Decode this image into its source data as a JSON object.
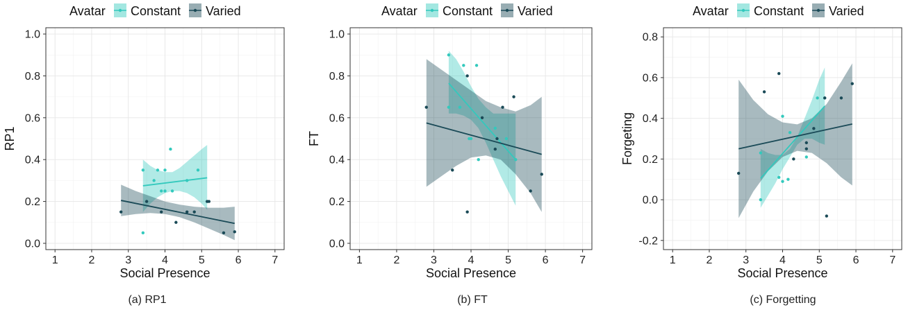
{
  "colors": {
    "constant": "#33c9bd",
    "varied": "#1a4a57"
  },
  "chart_data": [
    {
      "type": "scatter",
      "caption": "(a) RP1",
      "legend_title": "Avatar",
      "xlabel": "Social Presence",
      "ylabel": "RP1",
      "xlim": [
        0.75,
        7.25
      ],
      "ylim": [
        -0.03,
        1.03
      ],
      "xticks": [
        1,
        2,
        3,
        4,
        5,
        6,
        7
      ],
      "yticks": [
        0.0,
        0.2,
        0.4,
        0.6,
        0.8,
        1.0
      ],
      "ytick_labels": [
        "0.0",
        "0.2",
        "0.4",
        "0.6",
        "0.8",
        "1.0"
      ],
      "grid": true,
      "legend_position": "top",
      "series": [
        {
          "name": "Constant",
          "color": "#33c9bd",
          "points": [
            [
              3.4,
              0.35
            ],
            [
              3.4,
              0.05
            ],
            [
              3.7,
              0.3
            ],
            [
              3.8,
              0.35
            ],
            [
              3.9,
              0.25
            ],
            [
              4.0,
              0.25
            ],
            [
              4.0,
              0.35
            ],
            [
              4.15,
              0.45
            ],
            [
              4.2,
              0.25
            ],
            [
              4.6,
              0.3
            ],
            [
              4.9,
              0.35
            ],
            [
              5.15,
              0.2
            ]
          ],
          "fit": {
            "x": [
              3.4,
              5.15
            ],
            "y": [
              0.275,
              0.313
            ]
          },
          "band": {
            "x": [
              3.4,
              3.6,
              3.8,
              4.0,
              4.2,
              4.4,
              4.6,
              4.8,
              5.0,
              5.15
            ],
            "lower": [
              0.15,
              0.19,
              0.22,
              0.24,
              0.25,
              0.25,
              0.24,
              0.22,
              0.19,
              0.16
            ],
            "upper": [
              0.4,
              0.37,
              0.35,
              0.34,
              0.34,
              0.36,
              0.39,
              0.42,
              0.45,
              0.47
            ]
          }
        },
        {
          "name": "Varied",
          "color": "#1a4a57",
          "points": [
            [
              2.8,
              0.15
            ],
            [
              3.5,
              0.2
            ],
            [
              3.9,
              0.15
            ],
            [
              4.3,
              0.1
            ],
            [
              4.6,
              0.15
            ],
            [
              4.8,
              0.15
            ],
            [
              5.15,
              0.2
            ],
            [
              5.2,
              0.2
            ],
            [
              5.6,
              0.05
            ],
            [
              5.9,
              0.055
            ]
          ],
          "fit": {
            "x": [
              2.8,
              5.9
            ],
            "y": [
              0.205,
              0.095
            ]
          },
          "band": {
            "x": [
              2.8,
              3.2,
              3.6,
              4.0,
              4.4,
              4.8,
              5.2,
              5.6,
              5.9
            ],
            "lower": [
              0.13,
              0.14,
              0.145,
              0.14,
              0.125,
              0.1,
              0.07,
              0.04,
              0.015
            ],
            "upper": [
              0.28,
              0.25,
              0.225,
              0.2,
              0.185,
              0.175,
              0.17,
              0.17,
              0.175
            ]
          }
        }
      ]
    },
    {
      "type": "scatter",
      "caption": "(b) FT",
      "legend_title": "Avatar",
      "xlabel": "Social Presence",
      "ylabel": "FT",
      "xlim": [
        0.75,
        7.25
      ],
      "ylim": [
        -0.03,
        1.03
      ],
      "xticks": [
        1,
        2,
        3,
        4,
        5,
        6,
        7
      ],
      "yticks": [
        0.0,
        0.2,
        0.4,
        0.6,
        0.8,
        1.0
      ],
      "ytick_labels": [
        "0.0",
        "0.2",
        "0.4",
        "0.6",
        "0.8",
        "1.0"
      ],
      "grid": true,
      "legend_position": "top",
      "series": [
        {
          "name": "Constant",
          "color": "#33c9bd",
          "points": [
            [
              3.4,
              0.9
            ],
            [
              3.4,
              0.65
            ],
            [
              3.7,
              0.65
            ],
            [
              3.8,
              0.85
            ],
            [
              3.95,
              0.5
            ],
            [
              4.0,
              0.5
            ],
            [
              4.15,
              0.85
            ],
            [
              4.2,
              0.4
            ],
            [
              4.65,
              0.55
            ],
            [
              4.95,
              0.5
            ],
            [
              5.2,
              0.4
            ]
          ],
          "fit": {
            "x": [
              3.4,
              5.2
            ],
            "y": [
              0.765,
              0.4
            ]
          },
          "band": {
            "x": [
              3.4,
              3.6,
              3.8,
              4.0,
              4.2,
              4.4,
              4.6,
              4.8,
              5.0,
              5.2
            ],
            "lower": [
              0.62,
              0.62,
              0.61,
              0.59,
              0.55,
              0.48,
              0.4,
              0.32,
              0.25,
              0.18
            ],
            "upper": [
              0.92,
              0.88,
              0.82,
              0.75,
              0.69,
              0.65,
              0.62,
              0.62,
              0.62,
              0.62
            ]
          }
        },
        {
          "name": "Varied",
          "color": "#1a4a57",
          "points": [
            [
              2.8,
              0.65
            ],
            [
              3.5,
              0.35
            ],
            [
              3.9,
              0.15
            ],
            [
              3.9,
              0.8
            ],
            [
              4.3,
              0.6
            ],
            [
              4.65,
              0.45
            ],
            [
              4.7,
              0.5
            ],
            [
              4.85,
              0.65
            ],
            [
              5.15,
              0.7
            ],
            [
              5.6,
              0.25
            ],
            [
              5.9,
              0.33
            ]
          ],
          "fit": {
            "x": [
              2.8,
              5.9
            ],
            "y": [
              0.575,
              0.425
            ]
          },
          "band": {
            "x": [
              2.8,
              3.2,
              3.6,
              4.0,
              4.4,
              4.8,
              5.2,
              5.6,
              5.9
            ],
            "lower": [
              0.27,
              0.32,
              0.37,
              0.41,
              0.42,
              0.4,
              0.33,
              0.24,
              0.15
            ],
            "upper": [
              0.88,
              0.83,
              0.78,
              0.73,
              0.68,
              0.65,
              0.63,
              0.66,
              0.7
            ]
          }
        }
      ]
    },
    {
      "type": "scatter",
      "caption": "(c) Forgetting",
      "legend_title": "Avatar",
      "xlabel": "Social Presence",
      "ylabel": "Forgeting",
      "xlim": [
        0.75,
        7.25
      ],
      "ylim": [
        -0.245,
        0.845
      ],
      "xticks": [
        1,
        2,
        3,
        4,
        5,
        6,
        7
      ],
      "yticks": [
        -0.2,
        0.0,
        0.2,
        0.4,
        0.6,
        0.8
      ],
      "ytick_labels": [
        "-0.2",
        "0.0",
        "0.2",
        "0.4",
        "0.6",
        "0.8"
      ],
      "grid": true,
      "legend_position": "top",
      "series": [
        {
          "name": "Constant",
          "color": "#33c9bd",
          "points": [
            [
              3.4,
              0.0
            ],
            [
              3.4,
              0.23
            ],
            [
              3.9,
              0.11
            ],
            [
              4.0,
              0.09
            ],
            [
              4.0,
              0.41
            ],
            [
              4.15,
              0.1
            ],
            [
              4.2,
              0.33
            ],
            [
              4.65,
              0.21
            ],
            [
              4.95,
              0.5
            ],
            [
              5.15,
              0.5
            ]
          ],
          "fit": {
            "x": [
              3.4,
              5.15
            ],
            "y": [
              0.105,
              0.46
            ]
          },
          "band": {
            "x": [
              3.4,
              3.6,
              3.8,
              4.0,
              4.2,
              4.4,
              4.6,
              4.8,
              5.0,
              5.15
            ],
            "lower": [
              -0.04,
              0.02,
              0.08,
              0.15,
              0.21,
              0.27,
              0.3,
              0.3,
              0.28,
              0.27
            ],
            "upper": [
              0.25,
              0.23,
              0.22,
              0.22,
              0.25,
              0.31,
              0.4,
              0.49,
              0.59,
              0.65
            ]
          }
        },
        {
          "name": "Varied",
          "color": "#1a4a57",
          "points": [
            [
              2.8,
              0.13
            ],
            [
              3.5,
              0.53
            ],
            [
              3.9,
              0.62
            ],
            [
              4.3,
              0.2
            ],
            [
              4.65,
              0.25
            ],
            [
              4.65,
              0.28
            ],
            [
              4.85,
              0.35
            ],
            [
              5.15,
              0.5
            ],
            [
              5.2,
              -0.08
            ],
            [
              5.6,
              0.5
            ],
            [
              5.9,
              0.57
            ]
          ],
          "fit": {
            "x": [
              2.8,
              5.9
            ],
            "y": [
              0.25,
              0.372
            ]
          },
          "band": {
            "x": [
              2.8,
              3.2,
              3.6,
              4.0,
              4.4,
              4.8,
              5.2,
              5.6,
              5.9
            ],
            "lower": [
              -0.09,
              0.04,
              0.14,
              0.21,
              0.24,
              0.23,
              0.18,
              0.11,
              0.07
            ],
            "upper": [
              0.59,
              0.49,
              0.42,
              0.38,
              0.37,
              0.4,
              0.47,
              0.58,
              0.67
            ]
          }
        }
      ]
    }
  ]
}
